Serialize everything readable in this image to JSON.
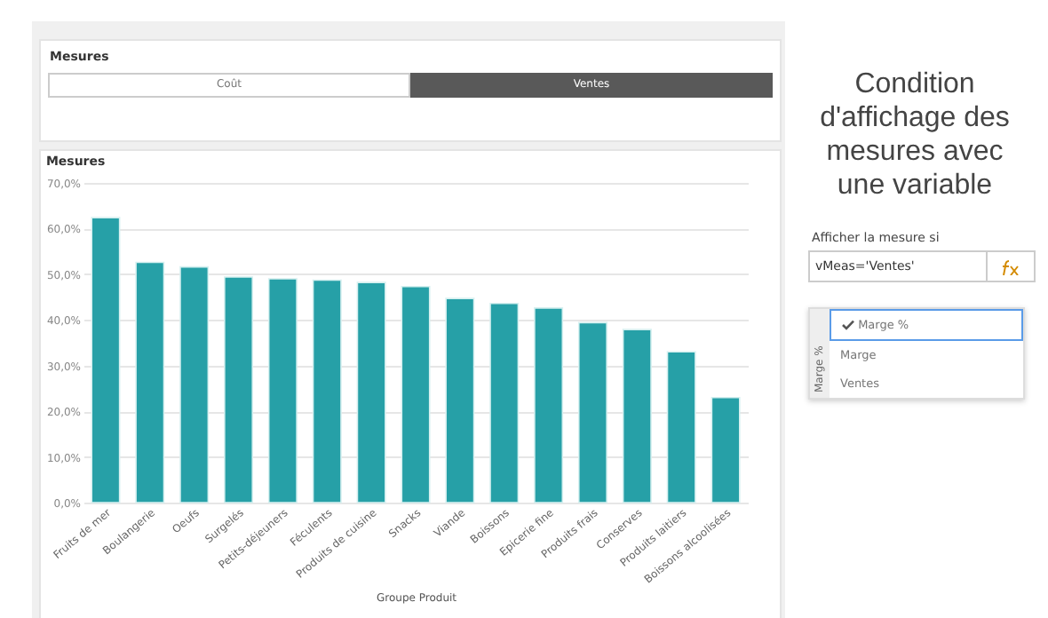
{
  "chart_data": {
    "type": "bar",
    "title": "Mesures",
    "xlabel": "Groupe Produit",
    "categories": [
      "Fruits de mer",
      "Boulangerie",
      "Oeufs",
      "Surgelés",
      "Petits-déjeuners",
      "Féculents",
      "Produits de cuisine",
      "Snacks",
      "Viande",
      "Boissons",
      "Epicerie fine",
      "Produits frais",
      "Conserves",
      "Produits laitiers",
      "Boissons alcoolisées"
    ],
    "values": [
      62.4,
      52.6,
      51.6,
      49.4,
      49.0,
      48.7,
      48.2,
      47.3,
      44.7,
      43.6,
      42.6,
      39.4,
      37.9,
      33.0,
      23.0
    ],
    "color": "#26a0a7",
    "ylim": [
      0,
      70
    ],
    "yticks": [
      {
        "value": 0,
        "label": "0,0%"
      },
      {
        "value": 10,
        "label": "10,0%"
      },
      {
        "value": 20,
        "label": "20,0%"
      },
      {
        "value": 30,
        "label": "30,0%"
      },
      {
        "value": 40,
        "label": "40,0%"
      },
      {
        "value": 50,
        "label": "50,0%"
      },
      {
        "value": 60,
        "label": "60,0%"
      },
      {
        "value": 70,
        "label": "70,0%"
      }
    ],
    "grid": "y",
    "annotations": [
      "Mesures",
      "Coût",
      "Ventes",
      "Condition d'affichage des mesures avec une variable",
      "Afficher la mesure si",
      "vMeas='Ventes'",
      "Marge %",
      "Marge %",
      "Marge",
      "Ventes"
    ]
  }
}
